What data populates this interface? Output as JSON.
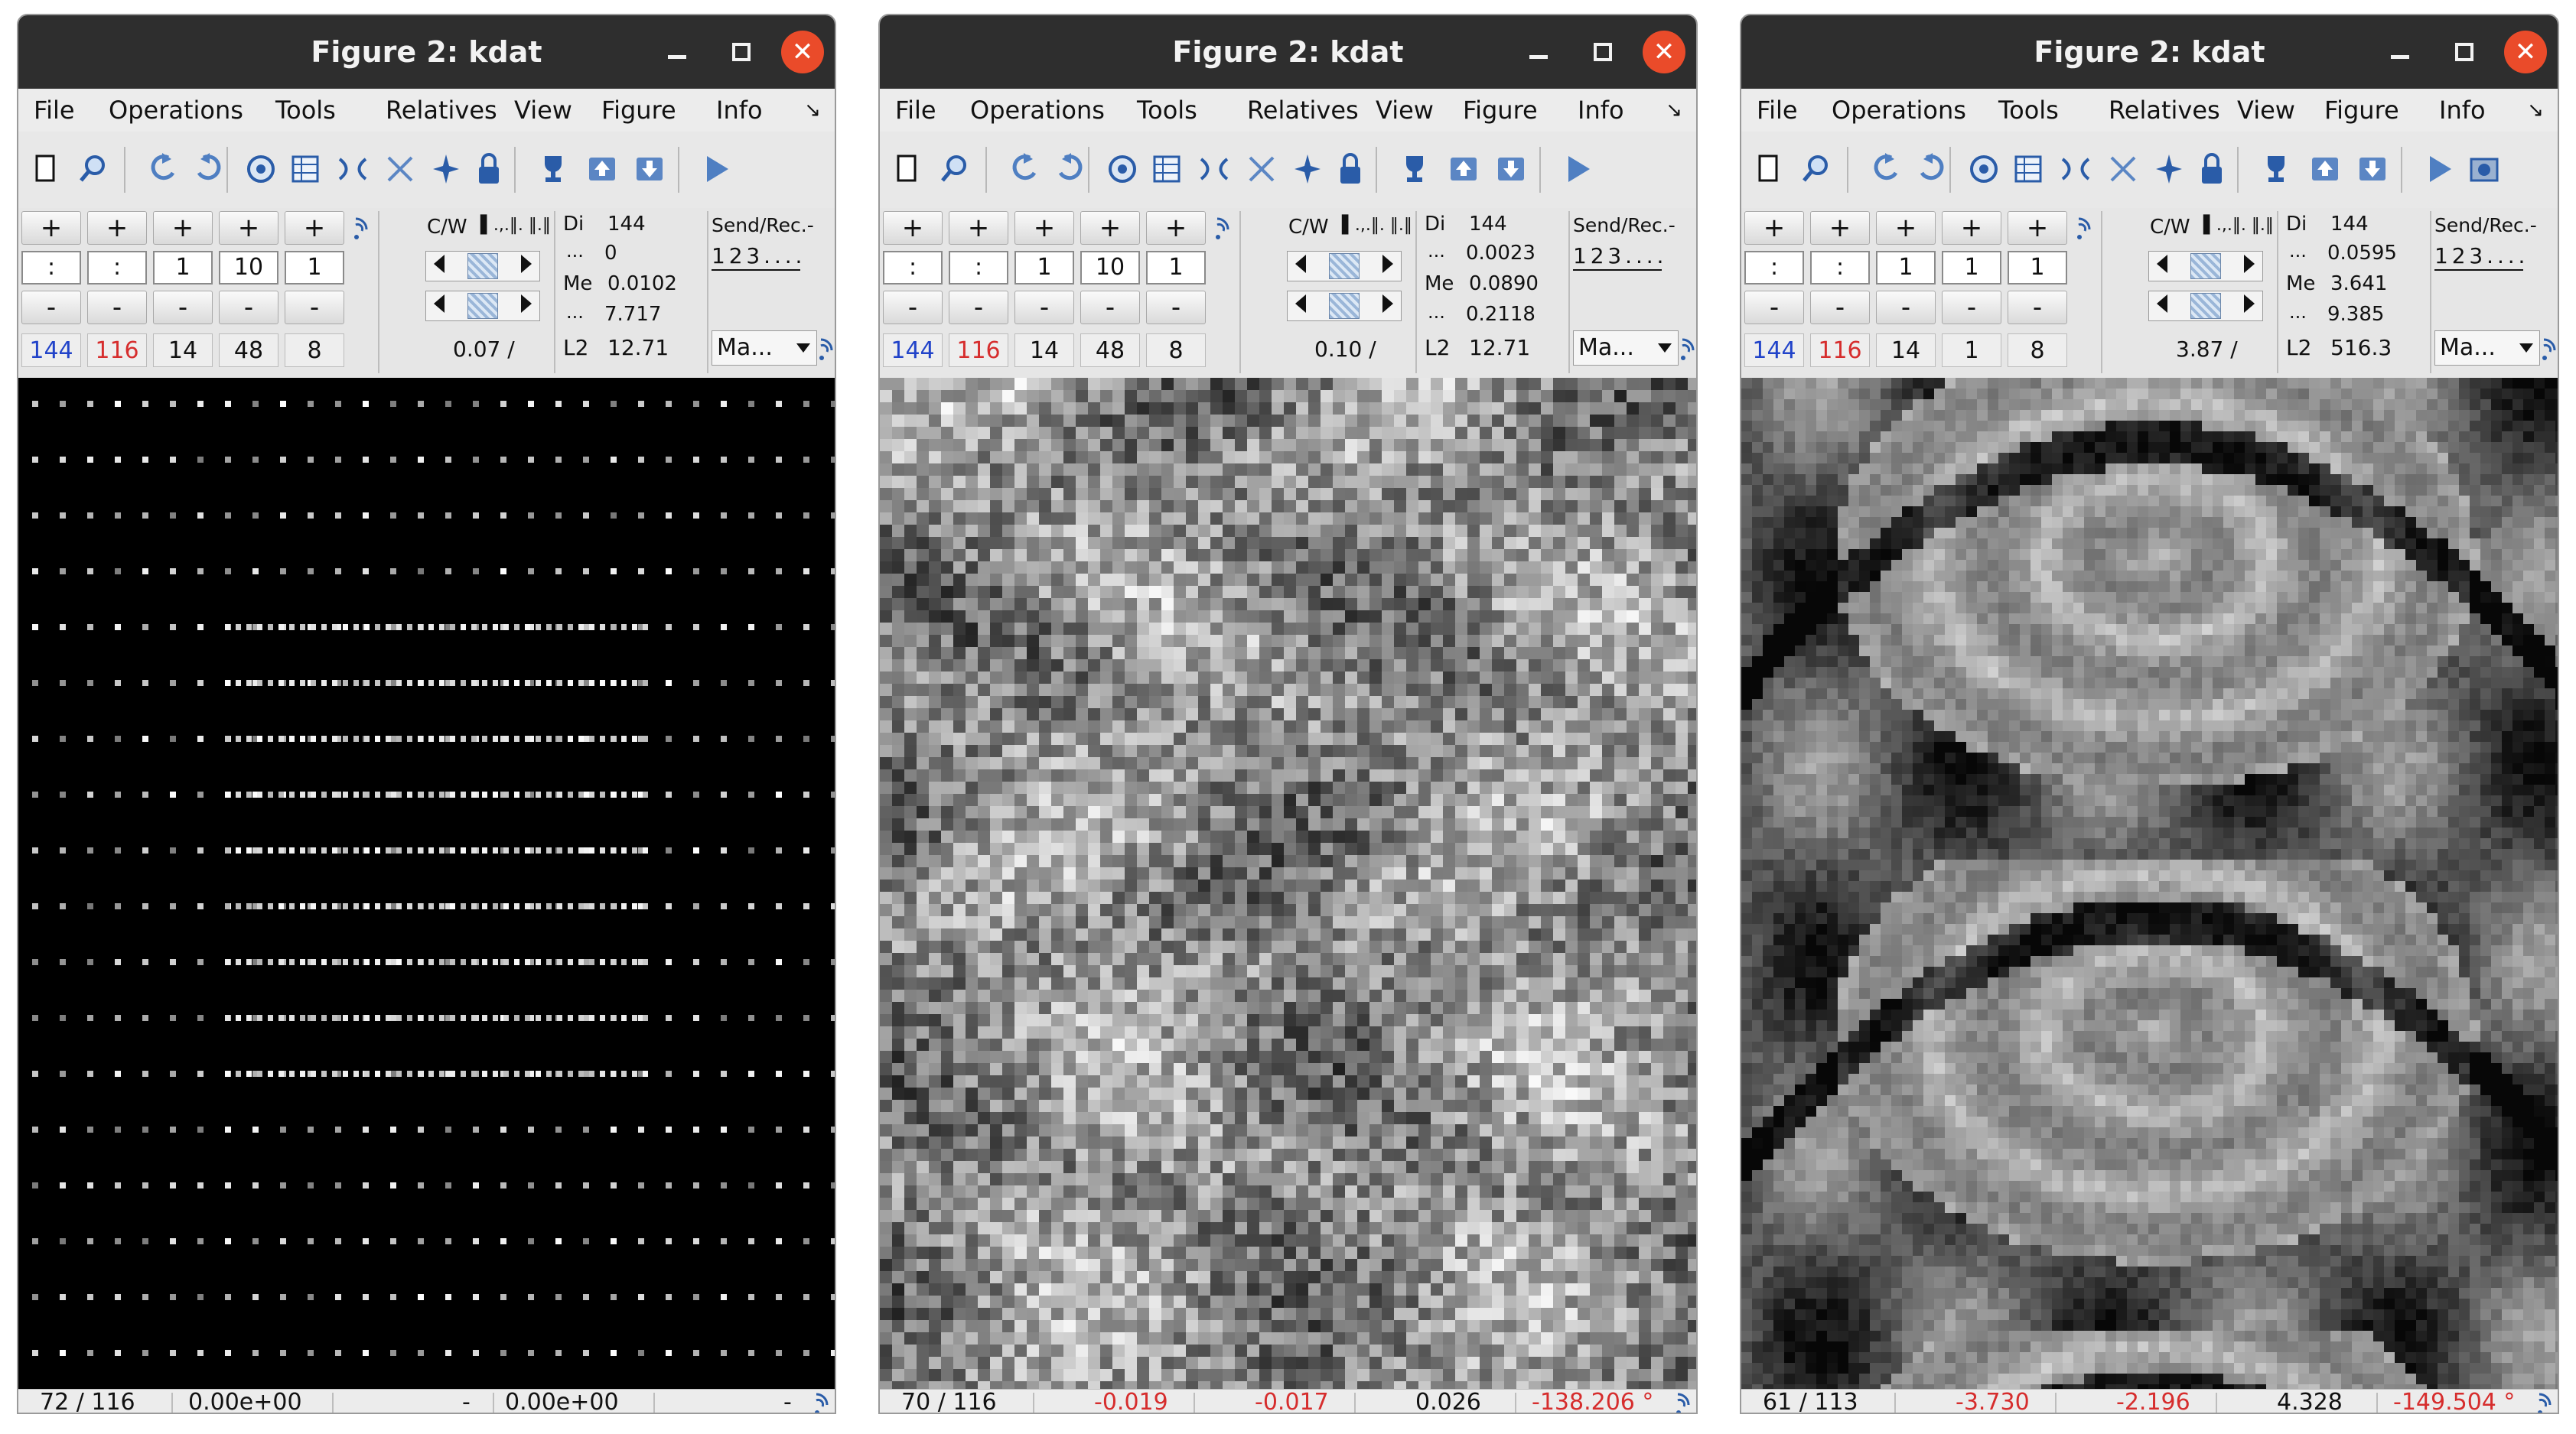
{
  "windows": [
    {
      "title": "Figure 2: kdat",
      "menu": [
        "File",
        "Operations",
        "Tools",
        "Relatives",
        "View",
        "Figure",
        "Info"
      ],
      "plus_label": "+",
      "minus_label": "-",
      "dims_input": [
        ":",
        ":",
        "1",
        "10",
        "1"
      ],
      "dims_size": [
        "144",
        "116",
        "14",
        "48",
        "8"
      ],
      "cw_label": "C/W",
      "cw_value": "0.07 /",
      "di_label": "Di",
      "di_value": "144",
      "di_sub": "0",
      "me_label": "Me",
      "me_value": "0.0102",
      "me_sub": "7.717",
      "l2_label": "L2",
      "l2_value": "12.71",
      "send_label": "Send/Rec.-",
      "send_digits": "1 2 3 . . . .",
      "mode_select": "Ma...",
      "status": {
        "coord": "72 /  116",
        "v1": "0.00e+00",
        "v2": "-",
        "v3": "0.00e+00",
        "v4": "-"
      },
      "image": "sparse dots"
    },
    {
      "title": "Figure 2: kdat",
      "menu": [
        "File",
        "Operations",
        "Tools",
        "Relatives",
        "View",
        "Figure",
        "Info"
      ],
      "plus_label": "+",
      "minus_label": "-",
      "dims_input": [
        ":",
        ":",
        "1",
        "10",
        "1"
      ],
      "dims_size": [
        "144",
        "116",
        "14",
        "48",
        "8"
      ],
      "cw_label": "C/W",
      "cw_value": "0.10 /",
      "di_label": "Di",
      "di_value": "144",
      "di_sub": "0.0023",
      "me_label": "Me",
      "me_value": "0.0890",
      "me_sub": "0.2118",
      "l2_label": "L2",
      "l2_value": "12.71",
      "send_label": "Send/Rec.-",
      "send_digits": "1 2 3 . . . .",
      "mode_select": "Ma...",
      "status": {
        "coord": "70 /  116",
        "v1": "-0.019",
        "v2": "-0.017",
        "v3": "0.026",
        "v4": "-138.206 °"
      },
      "image": "noise texture"
    },
    {
      "title": "Figure 2: kdat",
      "menu": [
        "File",
        "Operations",
        "Tools",
        "Relatives",
        "View",
        "Figure",
        "Info"
      ],
      "plus_label": "+",
      "minus_label": "-",
      "dims_input": [
        ":",
        ":",
        "1",
        "1",
        "1"
      ],
      "dims_size": [
        "144",
        "116",
        "14",
        "1",
        "8"
      ],
      "cw_label": "C/W",
      "cw_value": "3.87 /",
      "di_label": "Di",
      "di_value": "144",
      "di_sub": "0.0595",
      "me_label": "Me",
      "me_value": "3.641",
      "me_sub": "9.385",
      "l2_label": "L2",
      "l2_value": "516.3",
      "send_label": "Send/Rec.-",
      "send_digits": "1 2 3 . . . .",
      "mode_select": "Ma...",
      "status": {
        "coord": "61 /  113",
        "v1": "-3.730",
        "v2": "-2.196",
        "v3": "4.328",
        "v4": "-149.504 °"
      },
      "image": "mri aliased"
    }
  ],
  "colors": {
    "titlebar": "#2e2e2e",
    "close": "#ea4b2a",
    "negative": "#d62d2d",
    "dim_highlight": "#2143c9"
  },
  "icons": [
    "new-window-icon",
    "zoom-icon",
    "rotate-left-icon",
    "rotate-right-icon",
    "colormap-icon",
    "grid-icon",
    "flip-icon",
    "cross-icon",
    "star-icon",
    "lock-icon",
    "trophy-icon",
    "export-icon",
    "import-icon",
    "play-icon"
  ]
}
